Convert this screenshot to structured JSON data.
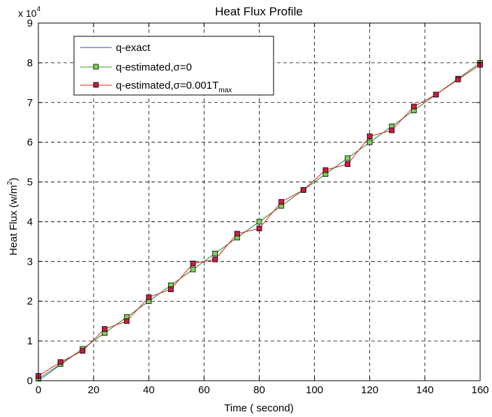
{
  "chart_data": {
    "type": "line",
    "title": "Heat Flux Profile",
    "xlabel": "Time ( second)",
    "ylabel": "Heat Flux (w/m",
    "ylabel_superscript": "2",
    "ylabel_suffix": ")",
    "y_multiplier_prefix": "x 10",
    "y_multiplier_exponent": "4",
    "xlim": [
      0,
      160
    ],
    "ylim": [
      0,
      90000
    ],
    "xticks": [
      0,
      20,
      40,
      60,
      80,
      100,
      120,
      140,
      160
    ],
    "xtick_labels": [
      "0",
      "20",
      "40",
      "60",
      "80",
      "100",
      "120",
      "140",
      "160"
    ],
    "yticks": [
      0,
      10000,
      20000,
      30000,
      40000,
      50000,
      60000,
      70000,
      80000,
      90000
    ],
    "ytick_labels": [
      "0",
      "1",
      "2",
      "3",
      "4",
      "5",
      "6",
      "7",
      "8",
      "9"
    ],
    "grid": true,
    "legend_position": "top-left",
    "series": [
      {
        "name": "q-exact",
        "color": "#2a4fa8",
        "marker": "none",
        "x": [
          0,
          160
        ],
        "y": [
          0,
          80000
        ]
      },
      {
        "name": "q-estimated,",
        "name_symbol": "σ",
        "name_suffix": "=0",
        "color": "#3a9a2a",
        "marker_fill": "#7fcf5a",
        "marker": "square",
        "x": [
          0,
          8,
          16,
          24,
          32,
          40,
          48,
          56,
          64,
          72,
          80,
          88,
          96,
          104,
          112,
          120,
          128,
          136,
          144,
          152,
          160
        ],
        "y": [
          500,
          4200,
          8000,
          12000,
          16000,
          20000,
          24000,
          28000,
          32000,
          36000,
          40000,
          44000,
          48000,
          52000,
          56000,
          60000,
          64000,
          68000,
          72000,
          76000,
          80000
        ]
      },
      {
        "name": "q-estimated,",
        "name_symbol": "σ",
        "name_suffix": "=0.001T",
        "name_subscript": "max",
        "color": "#e02020",
        "marker_fill": "#c81e3c",
        "marker": "square",
        "x": [
          0,
          8,
          16,
          24,
          32,
          40,
          48,
          56,
          64,
          72,
          80,
          88,
          96,
          104,
          112,
          120,
          128,
          136,
          144,
          152,
          160
        ],
        "y": [
          1200,
          4700,
          7500,
          13000,
          15000,
          21000,
          23000,
          29500,
          30500,
          37000,
          38300,
          45000,
          48000,
          53000,
          54500,
          61500,
          63000,
          69000,
          72000,
          75800,
          79500
        ]
      }
    ]
  }
}
